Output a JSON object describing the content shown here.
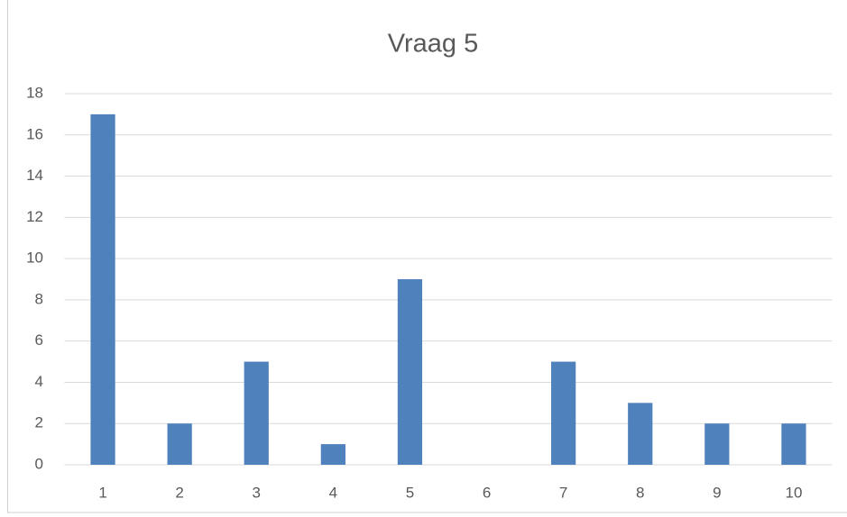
{
  "chart_data": {
    "type": "bar",
    "title": "Vraag 5",
    "categories": [
      "1",
      "2",
      "3",
      "4",
      "5",
      "6",
      "7",
      "8",
      "9",
      "10"
    ],
    "values": [
      17,
      2,
      5,
      1,
      9,
      0,
      5,
      3,
      2,
      2
    ],
    "color": "#4f81bd",
    "ylim": [
      0,
      18
    ],
    "yticks": [
      0,
      2,
      4,
      6,
      8,
      10,
      12,
      14,
      16,
      18
    ],
    "grid": true
  }
}
